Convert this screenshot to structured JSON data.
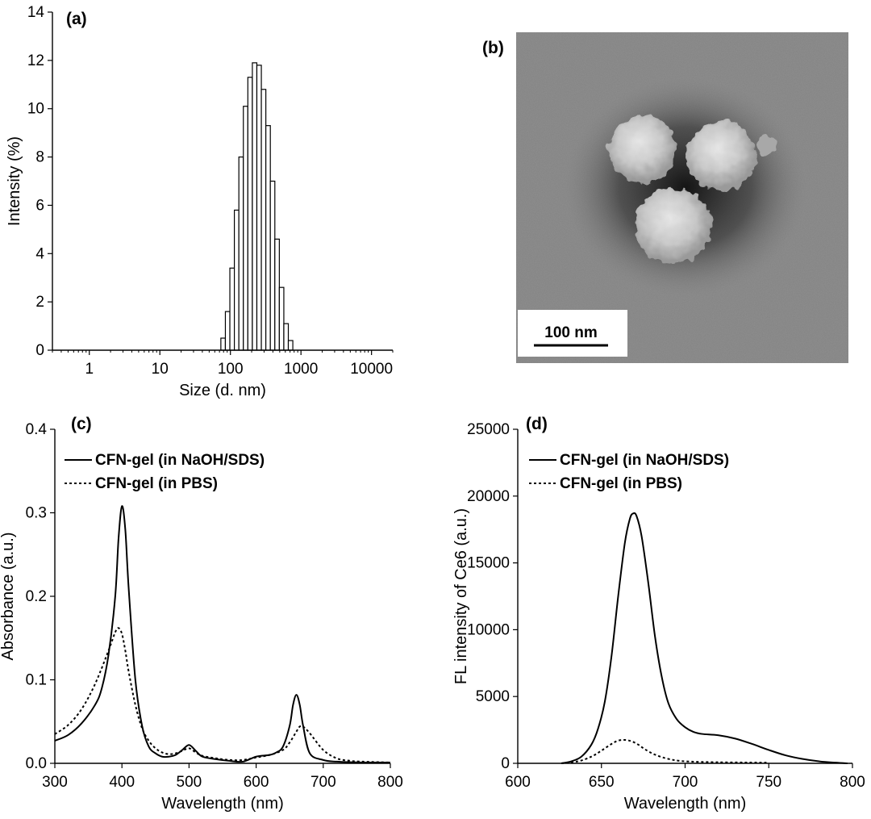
{
  "panels": {
    "a": {
      "label": "(a)"
    },
    "b": {
      "label": "(b)",
      "scale_bar": "100 nm"
    },
    "c": {
      "label": "(c)"
    },
    "d": {
      "label": "(d)"
    }
  },
  "chart_data": [
    {
      "id": "a",
      "type": "bar",
      "xlabel": "Size (d. nm)",
      "ylabel": "Intensity (%)",
      "xscale": "log",
      "xlim": [
        0.3,
        20000
      ],
      "ylim": [
        0,
        14
      ],
      "xticks": [
        1,
        10,
        100,
        1000,
        10000
      ],
      "xtick_labels": [
        "1",
        "10",
        "100",
        "1000",
        "10000"
      ],
      "yticks": [
        0,
        2,
        4,
        6,
        8,
        10,
        12,
        14
      ],
      "ytick_labels": [
        "0",
        "2",
        "4",
        "6",
        "8",
        "10",
        "12",
        "14"
      ],
      "x": [
        78.8,
        91.3,
        105.7,
        122.4,
        141.8,
        164.2,
        190.1,
        220.2,
        255.0,
        295.3,
        342.0,
        396.1,
        458.7,
        531.2,
        615.1,
        712.4
      ],
      "values": [
        0.5,
        1.6,
        3.4,
        5.8,
        8.0,
        10.1,
        11.3,
        11.9,
        11.8,
        10.8,
        9.3,
        7.0,
        4.6,
        2.6,
        1.1,
        0.4
      ]
    },
    {
      "id": "c",
      "type": "line",
      "xlabel": "Wavelength (nm)",
      "ylabel": "Absorbance (a.u.)",
      "xlim": [
        300,
        800
      ],
      "ylim": [
        0,
        0.4
      ],
      "xticks": [
        300,
        400,
        500,
        600,
        700,
        800
      ],
      "xtick_labels": [
        "300",
        "400",
        "500",
        "600",
        "700",
        "800"
      ],
      "yticks": [
        0,
        0.1,
        0.2,
        0.3,
        0.4
      ],
      "ytick_labels": [
        "0.0",
        "0.1",
        "0.2",
        "0.3",
        "0.4"
      ],
      "legend_position": "top-left",
      "series": [
        {
          "name": "CFN-gel (in NaOH/SDS)",
          "style": "solid",
          "x": [
            300,
            320,
            340,
            360,
            370,
            380,
            390,
            395,
            400,
            405,
            410,
            420,
            430,
            440,
            450,
            460,
            470,
            480,
            490,
            500,
            510,
            520,
            540,
            560,
            580,
            600,
            620,
            630,
            640,
            650,
            655,
            660,
            665,
            670,
            680,
            700,
            720,
            760,
            800
          ],
          "y": [
            0.027,
            0.034,
            0.048,
            0.07,
            0.09,
            0.13,
            0.2,
            0.27,
            0.308,
            0.28,
            0.21,
            0.1,
            0.045,
            0.02,
            0.012,
            0.008,
            0.008,
            0.01,
            0.016,
            0.022,
            0.015,
            0.008,
            0.005,
            0.003,
            0.002,
            0.008,
            0.01,
            0.013,
            0.02,
            0.045,
            0.07,
            0.082,
            0.07,
            0.045,
            0.012,
            0.004,
            0.002,
            0.001,
            0.001
          ]
        },
        {
          "name": "CFN-gel (in PBS)",
          "style": "dotted",
          "x": [
            300,
            320,
            340,
            360,
            380,
            390,
            395,
            400,
            405,
            410,
            420,
            430,
            440,
            450,
            460,
            470,
            480,
            490,
            500,
            510,
            520,
            540,
            560,
            580,
            600,
            620,
            640,
            650,
            660,
            665,
            670,
            680,
            700,
            720,
            740,
            760,
            800
          ],
          "y": [
            0.035,
            0.046,
            0.065,
            0.095,
            0.135,
            0.157,
            0.162,
            0.155,
            0.135,
            0.11,
            0.07,
            0.042,
            0.027,
            0.018,
            0.013,
            0.011,
            0.012,
            0.015,
            0.018,
            0.013,
            0.009,
            0.006,
            0.004,
            0.004,
            0.007,
            0.01,
            0.016,
            0.025,
            0.038,
            0.044,
            0.044,
            0.036,
            0.016,
            0.006,
            0.003,
            0.002,
            0.001
          ]
        }
      ]
    },
    {
      "id": "d",
      "type": "line",
      "xlabel": "Wavelength (nm)",
      "ylabel": "FL intensity of Ce6 (a.u.)",
      "xlim": [
        600,
        800
      ],
      "ylim": [
        0,
        25000
      ],
      "xticks": [
        600,
        650,
        700,
        750,
        800
      ],
      "xtick_labels": [
        "600",
        "650",
        "700",
        "750",
        "800"
      ],
      "yticks": [
        0,
        5000,
        10000,
        15000,
        20000,
        25000
      ],
      "ytick_labels": [
        "0",
        "5000",
        "10000",
        "15000",
        "20000",
        "25000"
      ],
      "legend_position": "top-left",
      "series": [
        {
          "name": "CFN-gel (in NaOH/SDS)",
          "style": "solid",
          "x": [
            626,
            632,
            638,
            644,
            648,
            652,
            656,
            660,
            664,
            667,
            669,
            671,
            674,
            678,
            682,
            686,
            690,
            695,
            700,
            705,
            710,
            720,
            730,
            740,
            750,
            760,
            770,
            780,
            790,
            797
          ],
          "y": [
            0,
            150,
            500,
            1400,
            2600,
            4600,
            8000,
            12500,
            16500,
            18300,
            18700,
            18500,
            17000,
            13500,
            9500,
            6500,
            4500,
            3300,
            2700,
            2350,
            2200,
            2100,
            1850,
            1450,
            1000,
            600,
            330,
            150,
            50,
            0
          ]
        },
        {
          "name": "CFN-gel (in PBS)",
          "style": "dotted",
          "x": [
            626,
            636,
            644,
            650,
            656,
            660,
            664,
            668,
            672,
            676,
            682,
            690,
            700,
            720,
            740,
            750
          ],
          "y": [
            0,
            150,
            500,
            950,
            1450,
            1700,
            1750,
            1650,
            1400,
            1050,
            650,
            330,
            150,
            80,
            60,
            50
          ]
        }
      ]
    }
  ]
}
